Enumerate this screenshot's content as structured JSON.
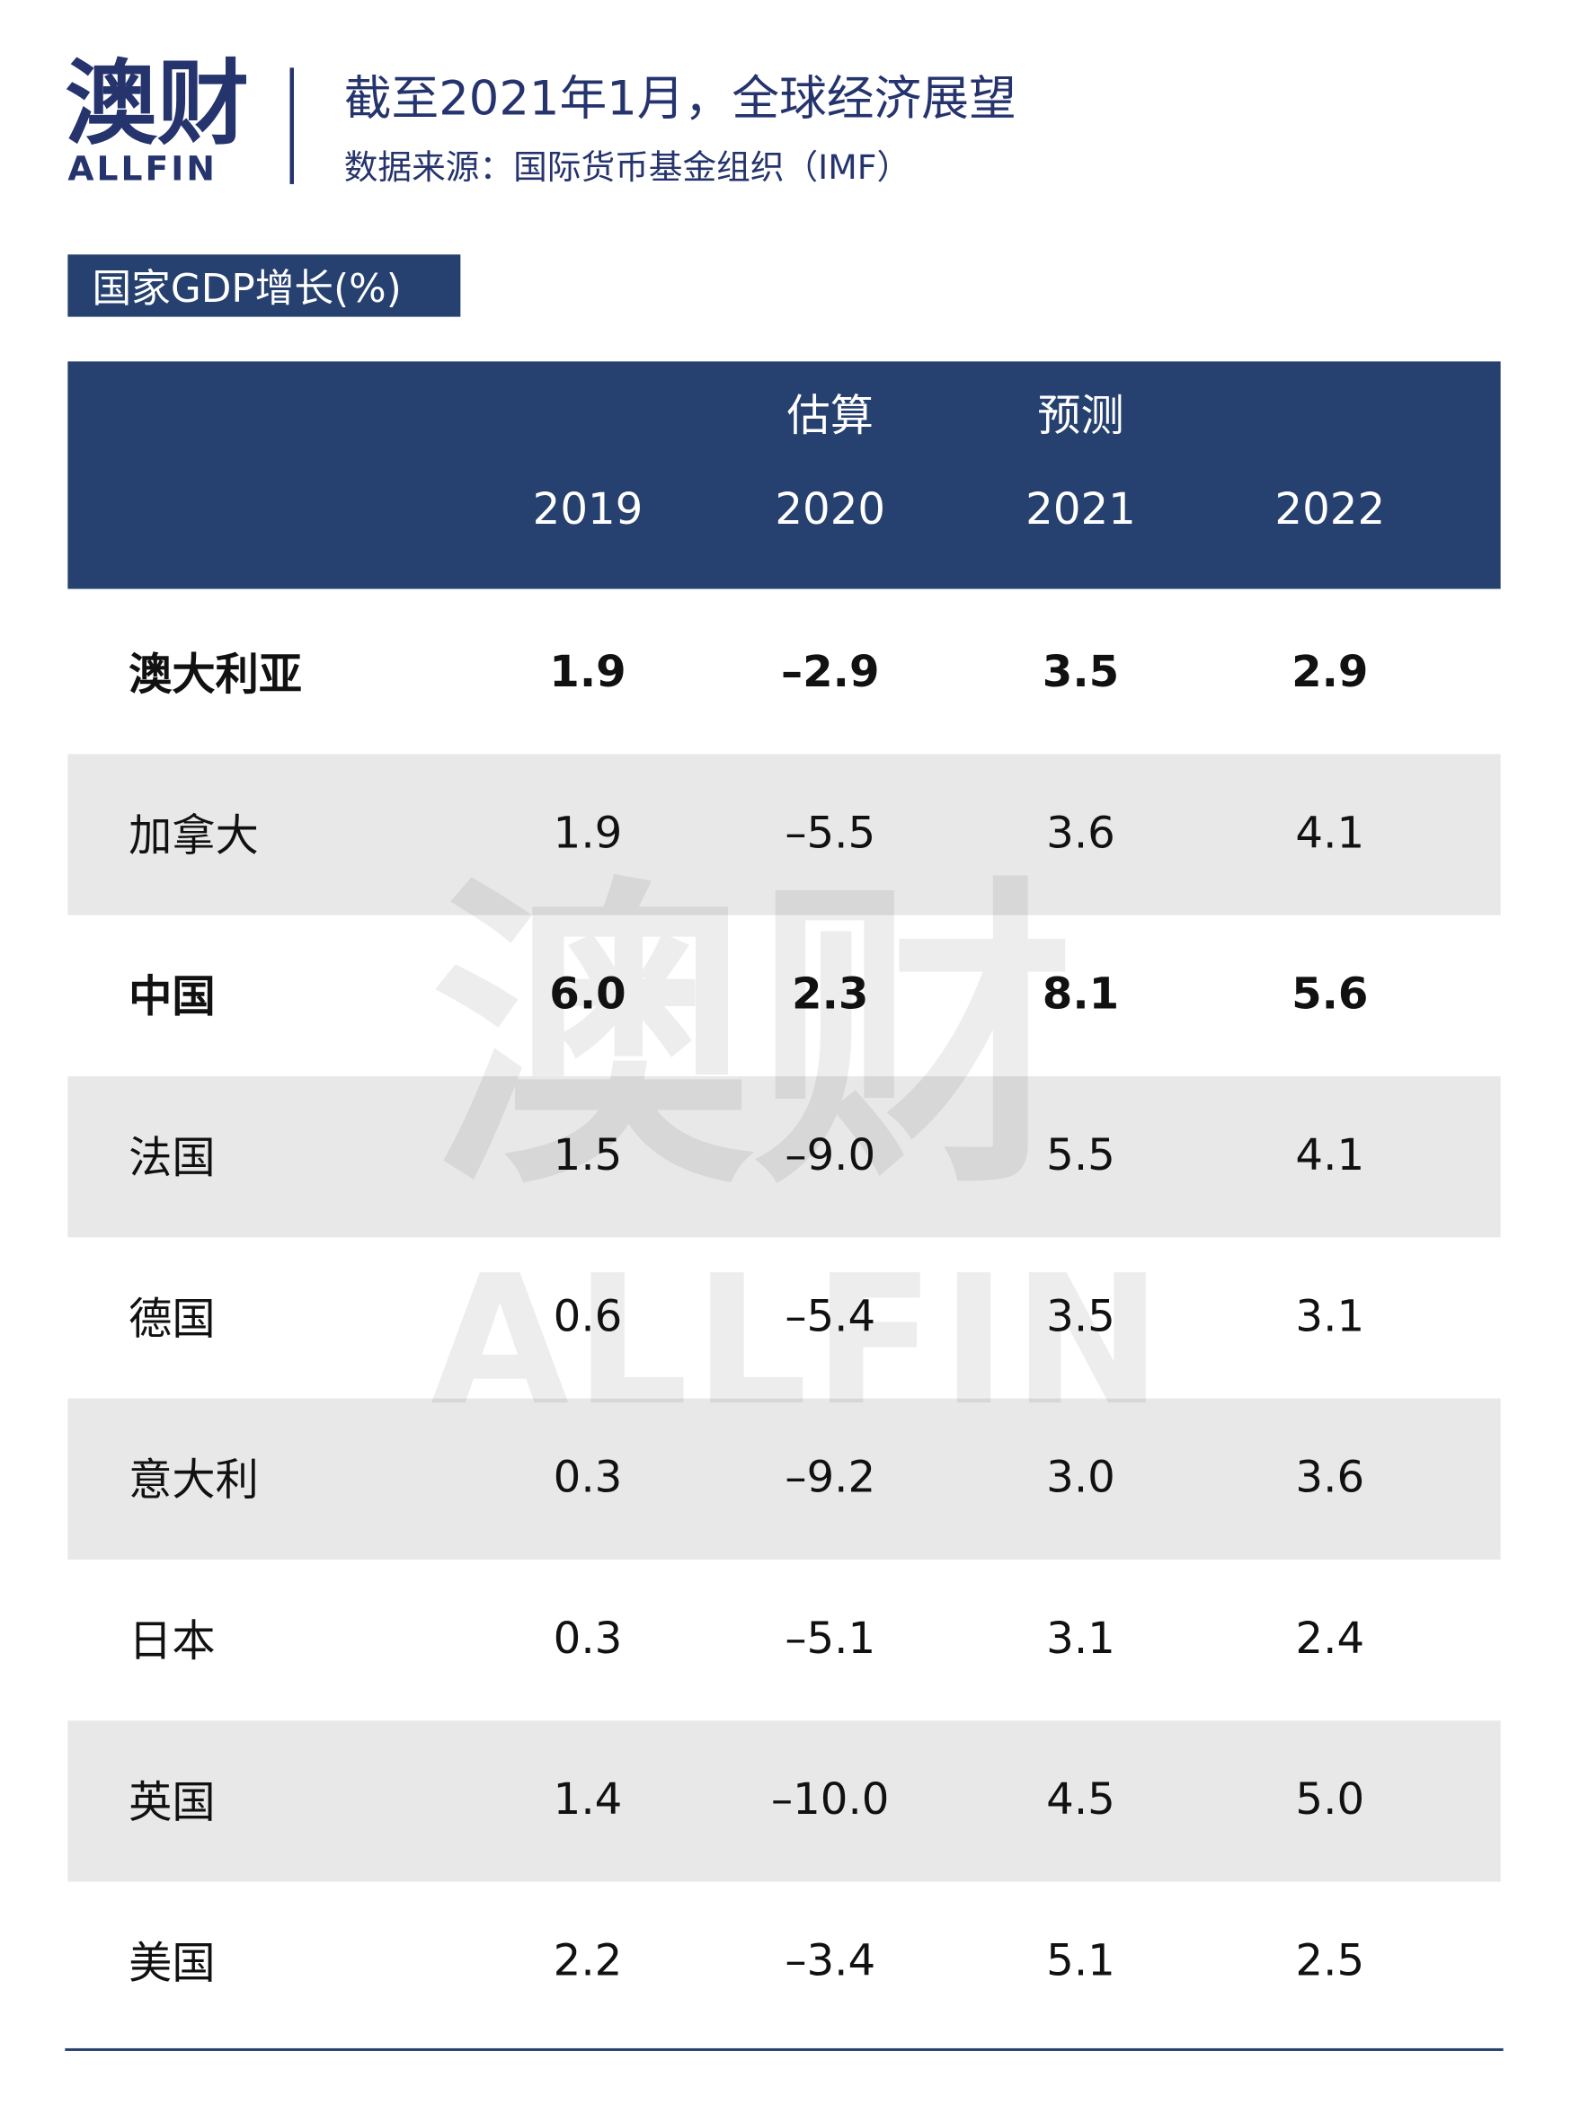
{
  "logo": {
    "text": "澳财",
    "subtext": "ALLFIN"
  },
  "header": {
    "title": "截至2021年1月，全球经济展望",
    "source": "数据来源：国际货币基金组织（IMF）"
  },
  "section_label": "国家GDP增长(%)",
  "watermark": {
    "text": "澳财",
    "subtext": "ALLFIN"
  },
  "table": {
    "header_top": [
      null,
      "估算",
      "预测",
      null
    ],
    "columns": [
      "2019",
      "2020",
      "2021",
      "2022"
    ],
    "rows": [
      {
        "name": "澳大利亚",
        "values": [
          "1.9",
          "–2.9",
          "3.5",
          "2.9"
        ],
        "bold": true
      },
      {
        "name": "加拿大",
        "values": [
          "1.9",
          "–5.5",
          "3.6",
          "4.1"
        ],
        "bold": false
      },
      {
        "name": "中国",
        "values": [
          "6.0",
          "2.3",
          "8.1",
          "5.6"
        ],
        "bold": true
      },
      {
        "name": "法国",
        "values": [
          "1.5",
          "–9.0",
          "5.5",
          "4.1"
        ],
        "bold": false
      },
      {
        "name": "德国",
        "values": [
          "0.6",
          "–5.4",
          "3.5",
          "3.1"
        ],
        "bold": false
      },
      {
        "name": "意大利",
        "values": [
          "0.3",
          "–9.2",
          "3.0",
          "3.6"
        ],
        "bold": false
      },
      {
        "name": "日本",
        "values": [
          "0.3",
          "–5.1",
          "3.1",
          "2.4"
        ],
        "bold": false
      },
      {
        "name": "英国",
        "values": [
          "1.4",
          "–10.0",
          "4.5",
          "5.0"
        ],
        "bold": false
      },
      {
        "name": "美国",
        "values": [
          "2.2",
          "–3.4",
          "5.1",
          "2.5"
        ],
        "bold": false
      }
    ]
  }
}
